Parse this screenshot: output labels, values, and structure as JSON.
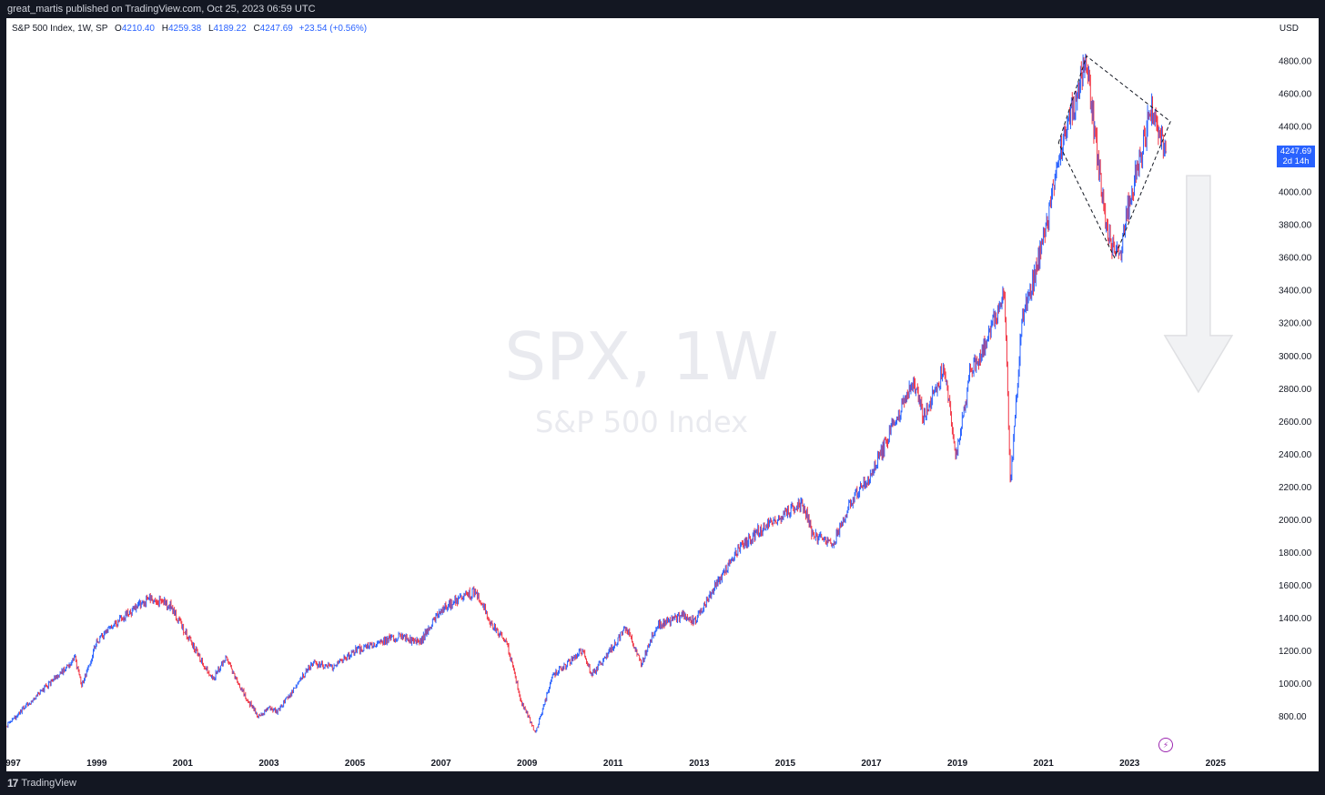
{
  "header": {
    "publish_text": "great_martis published on TradingView.com, Oct 25, 2023 06:59 UTC"
  },
  "legend": {
    "symbol": "S&P 500 Index, 1W, SP",
    "open_label": "O",
    "open": "4210.40",
    "high_label": "H",
    "high": "4259.38",
    "low_label": "L",
    "low": "4189.22",
    "close_label": "C",
    "close": "4247.69",
    "change": "+23.54 (+0.56%)"
  },
  "currency": "USD",
  "watermark": {
    "title": "SPX, 1W",
    "subtitle": "S&P 500 Index"
  },
  "price_tag": {
    "price": "4247.69",
    "countdown": "2d 14h"
  },
  "footer": {
    "brand_mark": "17",
    "brand": "TradingView"
  },
  "colors": {
    "up": "#2962ff",
    "down": "#f23645",
    "pattern": "#131722",
    "arrow": "#dfe0e3"
  },
  "icons": {
    "replay": "lightning-icon"
  },
  "chart_data": {
    "type": "line",
    "title": "S&P 500 Index, 1W, SP",
    "interval": "1W",
    "y_ticks": [
      800,
      1000,
      1200,
      1400,
      1600,
      1800,
      2000,
      2200,
      2400,
      2600,
      2800,
      3000,
      3200,
      3400,
      3600,
      3800,
      4000,
      4200,
      4400,
      4600,
      4800
    ],
    "x_ticks": [
      "1997",
      "1999",
      "2001",
      "2003",
      "2005",
      "2007",
      "2009",
      "2011",
      "2013",
      "2015",
      "2017",
      "2019",
      "2021",
      "2023",
      "2025"
    ],
    "ylim": [
      620,
      4950
    ],
    "xlim": [
      1996.9,
      2026.4
    ],
    "series": [
      {
        "x": [
          1996.9,
          1997.5,
          1998.5,
          1998.65,
          1999.0,
          1999.5,
          2000.2,
          2000.7,
          2001.3,
          2001.7,
          2002.0,
          2002.5,
          2002.75,
          2003.0,
          2003.2,
          2004.0,
          2004.5,
          2005.0,
          2006.0,
          2006.5,
          2007.0,
          2007.5,
          2007.8,
          2008.2,
          2008.5,
          2008.85,
          2009.2,
          2009.6,
          2010.3,
          2010.5,
          2011.3,
          2011.65,
          2012.0,
          2012.7,
          2012.9,
          2013.5,
          2014.0,
          2014.5,
          2015.4,
          2015.65,
          2016.1,
          2016.5,
          2017.0,
          2018.0,
          2018.2,
          2018.7,
          2018.98,
          2019.3,
          2019.5,
          2020.1,
          2020.23,
          2020.5,
          2020.9,
          2021.5,
          2022.0,
          2022.45,
          2022.75,
          2023.0,
          2023.5,
          2023.85
        ],
        "y": [
          740,
          900,
          1150,
          990,
          1250,
          1380,
          1520,
          1480,
          1200,
          1030,
          1150,
          900,
          800,
          850,
          830,
          1120,
          1100,
          1200,
          1290,
          1250,
          1450,
          1530,
          1560,
          1350,
          1280,
          900,
          700,
          1050,
          1200,
          1050,
          1340,
          1120,
          1350,
          1420,
          1380,
          1650,
          1850,
          1950,
          2110,
          1900,
          1850,
          2100,
          2280,
          2850,
          2620,
          2930,
          2380,
          2900,
          2980,
          3380,
          2220,
          3200,
          3600,
          4350,
          4800,
          3780,
          3580,
          3950,
          4500,
          4247.69
        ]
      }
    ],
    "annotations": [
      {
        "type": "diamond",
        "points": [
          [
            2021.35,
            4300
          ],
          [
            2022.0,
            4830
          ],
          [
            2023.95,
            4430
          ],
          [
            2022.65,
            3600
          ]
        ]
      },
      {
        "type": "down-arrow",
        "from": [
          2024.6,
          4100
        ],
        "to": [
          2024.6,
          2780
        ]
      }
    ]
  }
}
